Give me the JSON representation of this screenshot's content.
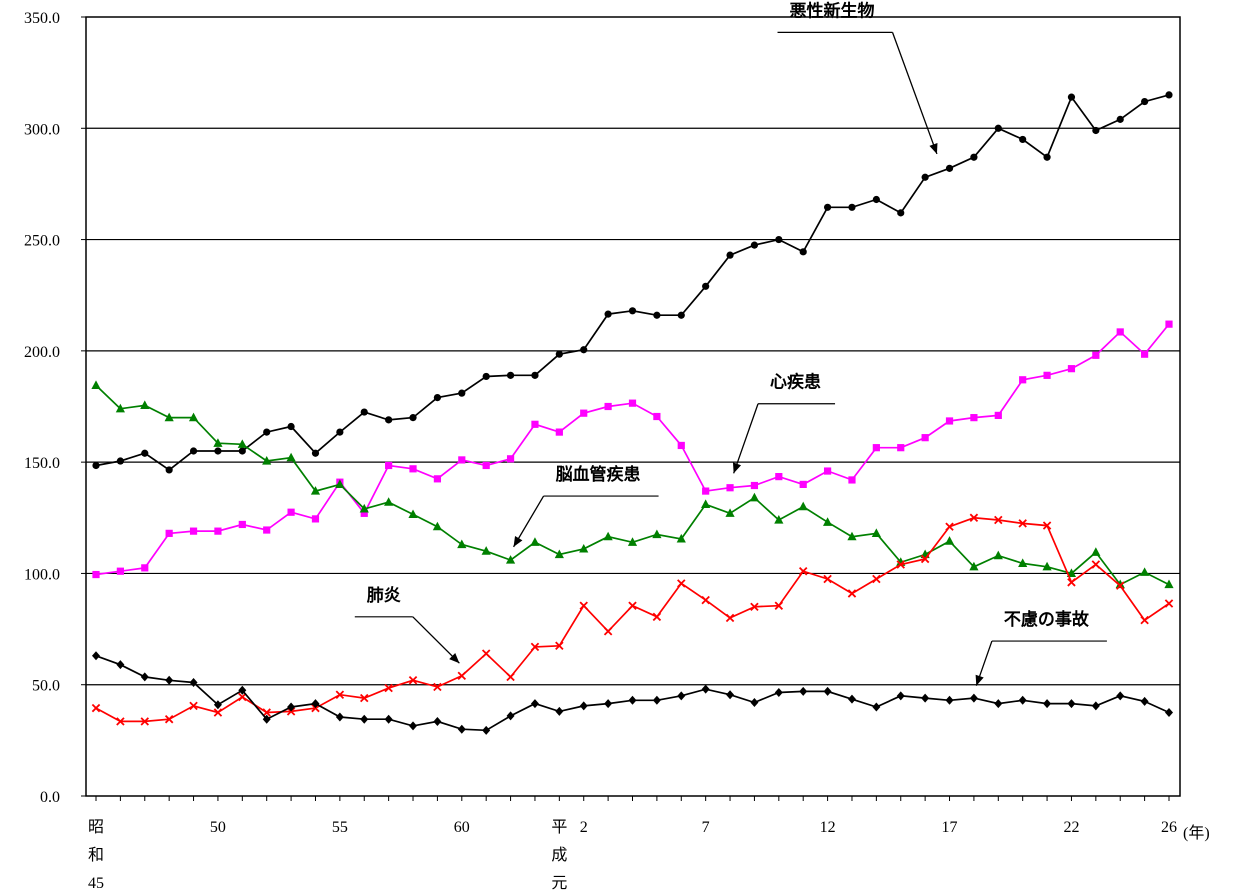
{
  "chart_data": {
    "type": "line",
    "ylim": [
      0,
      350
    ],
    "y_ticks": [
      "0.0",
      "50.0",
      "100.0",
      "150.0",
      "200.0",
      "250.0",
      "300.0",
      "350.0"
    ],
    "x_tick_labels": [
      {
        "i": 0,
        "lines": [
          "昭",
          "和",
          "45"
        ]
      },
      {
        "i": 5,
        "lines": [
          "50"
        ]
      },
      {
        "i": 10,
        "lines": [
          "55"
        ]
      },
      {
        "i": 15,
        "lines": [
          "60"
        ]
      },
      {
        "i": 19,
        "lines": [
          "平",
          "成",
          "元"
        ]
      },
      {
        "i": 20,
        "lines": [
          "2"
        ]
      },
      {
        "i": 25,
        "lines": [
          "7"
        ]
      },
      {
        "i": 30,
        "lines": [
          "12"
        ]
      },
      {
        "i": 35,
        "lines": [
          "17"
        ]
      },
      {
        "i": 40,
        "lines": [
          "22"
        ]
      },
      {
        "i": 44,
        "lines": [
          "26"
        ]
      }
    ],
    "x_unit": "(年)",
    "grid": true,
    "series": [
      {
        "name": "悪性新生物",
        "color": "#000000",
        "marker": "circle",
        "values": [
          148.5,
          150.5,
          154,
          146.5,
          155,
          155,
          155,
          163.5,
          166,
          154,
          163.5,
          172.5,
          169,
          170,
          179,
          181,
          188.5,
          189,
          189,
          198.5,
          200.5,
          216.5,
          218,
          216,
          216,
          229,
          243,
          247.5,
          250,
          244.5,
          264.5,
          264.5,
          268,
          262,
          278,
          282,
          287,
          300,
          295,
          287,
          314,
          299,
          304,
          312,
          315
        ],
        "label_index": 35
      },
      {
        "name": "心疾患",
        "color": "#ff00ff",
        "marker": "square",
        "values": [
          99.5,
          101,
          102.5,
          118,
          119,
          119,
          122,
          119.5,
          127.5,
          124.5,
          141,
          127,
          148.5,
          147,
          142.5,
          151,
          148.5,
          151.5,
          167,
          163.5,
          172,
          175,
          176.5,
          170.5,
          157.5,
          137,
          138.5,
          139.5,
          143.5,
          140,
          146,
          142,
          156.5,
          156.5,
          161,
          168.5,
          170,
          171,
          187,
          189,
          192,
          198,
          208.5,
          198.5,
          212
        ],
        "label_index": 26
      },
      {
        "name": "脳血管疾患",
        "color": "#008000",
        "marker": "triangle",
        "values": [
          184.5,
          174,
          175.5,
          170,
          170,
          158.5,
          158,
          150.5,
          152,
          137,
          140,
          129,
          132,
          126.5,
          121,
          113,
          110,
          106,
          114,
          108.5,
          111,
          116.5,
          114,
          117.5,
          115.5,
          131,
          127,
          134,
          124,
          130,
          123,
          116.5,
          118,
          105,
          108.5,
          114.5,
          103,
          108,
          104.5,
          103,
          100,
          109.5,
          95,
          100.5,
          95
        ],
        "label_index": 17
      },
      {
        "name": "肺炎",
        "color": "#ff0000",
        "marker": "x",
        "values": [
          39.5,
          33.5,
          33.5,
          34.5,
          40.5,
          37.5,
          44.5,
          37.5,
          38,
          39.5,
          45.5,
          44,
          48.5,
          52,
          49,
          54,
          64,
          53.5,
          67,
          67.5,
          85.5,
          74,
          85.5,
          80.5,
          95.5,
          88,
          80,
          85,
          85.5,
          101,
          97.5,
          91,
          97.5,
          104,
          106.5,
          121,
          125,
          124,
          122.5,
          121.5,
          96,
          104,
          94.5,
          79,
          86.5
        ],
        "label_index": 15
      },
      {
        "name": "不慮の事故",
        "color": "#000000",
        "marker": "diamond",
        "values": [
          63,
          59,
          53.5,
          52,
          51,
          41,
          47.5,
          34.5,
          40,
          41.5,
          35.5,
          34.5,
          34.5,
          31.5,
          33.5,
          30,
          29.5,
          36,
          41.5,
          38,
          40.5,
          41.5,
          43,
          43,
          45,
          48,
          45.5,
          42,
          46.5,
          47,
          47,
          43.5,
          40,
          45,
          44,
          43,
          44,
          41.5,
          43,
          41.5,
          41.5,
          40.5,
          45,
          42.5,
          37.5
        ],
        "label_index": 36
      }
    ]
  }
}
